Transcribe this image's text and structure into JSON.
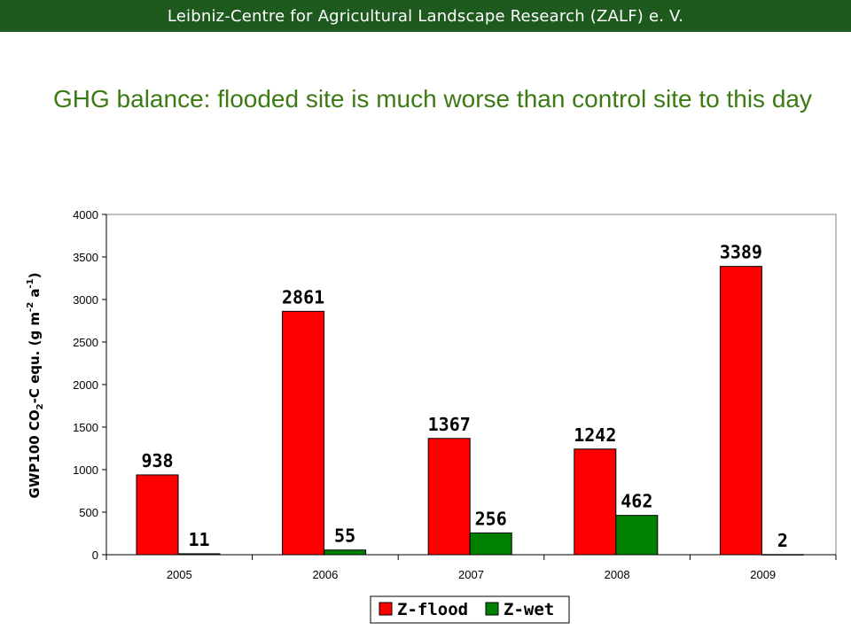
{
  "header": {
    "text": "Leibniz-Centre for Agricultural Landscape Research (ZALF) e. V."
  },
  "slide": {
    "title": "GHG balance: flooded site is much worse than control site to this day"
  },
  "colors": {
    "header_bg": "#1e5a1e",
    "title": "#3d7a14",
    "flood": "#ff0000",
    "wet": "#008000"
  },
  "chart_data": {
    "type": "bar",
    "categories": [
      "2005",
      "2006",
      "2007",
      "2008",
      "2009"
    ],
    "series": [
      {
        "name": "Z-flood",
        "values": [
          938,
          2861,
          1367,
          1242,
          3389
        ],
        "labels": [
          "938",
          "2861",
          "1367",
          "1242",
          "3389"
        ]
      },
      {
        "name": "Z-wet",
        "values": [
          11,
          55,
          256,
          462,
          2
        ],
        "labels": [
          "11",
          "55",
          "256",
          "462",
          "2"
        ]
      }
    ],
    "ylim": [
      0,
      4000
    ],
    "yticks": [
      "0",
      "500",
      "1000",
      "1500",
      "2000",
      "2500",
      "3000",
      "3500",
      "4000"
    ],
    "ylabel": {
      "prefix": "GWP100 CO",
      "sub1": "2",
      "middle": "-C equ. (g m",
      "sup1": "-2",
      "middle2": " a",
      "sup2": "-1",
      "suffix": ")"
    },
    "legend_position": "bottom",
    "grid": false
  }
}
